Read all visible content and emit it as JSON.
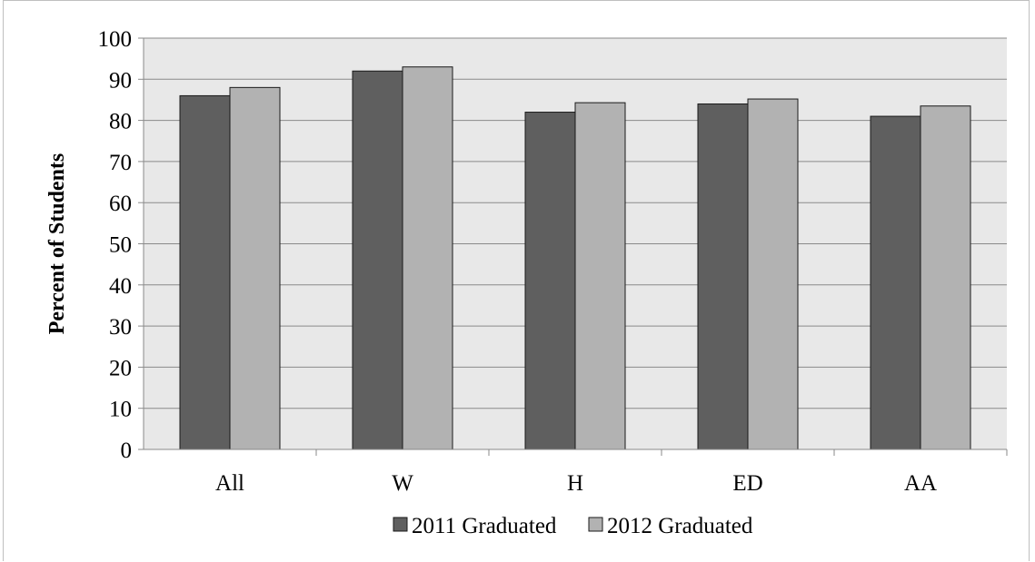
{
  "chart_data": {
    "type": "bar",
    "title": "",
    "xlabel": "",
    "ylabel": "Percent of Students",
    "categories": [
      "All",
      "W",
      "H",
      "ED",
      "AA"
    ],
    "series": [
      {
        "name": "2011 Graduated",
        "values": [
          86,
          92,
          82,
          84,
          81
        ],
        "color": "#5f5f5f"
      },
      {
        "name": "2012 Graduated",
        "values": [
          88,
          93,
          84.3,
          85.2,
          83.5
        ],
        "color": "#b2b2b2"
      }
    ],
    "ylim": [
      0,
      100
    ],
    "yticks": [
      0,
      10,
      20,
      30,
      40,
      50,
      60,
      70,
      80,
      90,
      100
    ],
    "grid": true,
    "plot_background": "#e8e8e8",
    "legend_position": "bottom"
  }
}
